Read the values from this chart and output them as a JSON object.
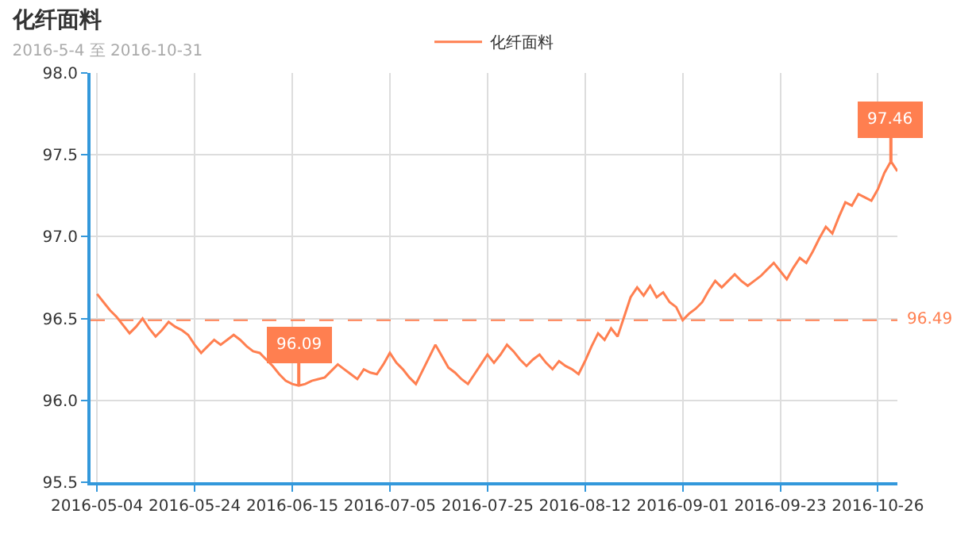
{
  "chart_data": {
    "type": "line",
    "title": "化纤面料",
    "subtitle": "2016-5-4 至 2016-10-31",
    "categories": [
      "2016-05-04",
      null,
      null,
      null,
      null,
      null,
      null,
      null,
      null,
      null,
      null,
      null,
      null,
      null,
      null,
      "2016-05-24",
      null,
      null,
      null,
      null,
      null,
      null,
      null,
      null,
      null,
      null,
      null,
      null,
      null,
      null,
      "2016-06-15",
      null,
      null,
      null,
      null,
      null,
      null,
      null,
      null,
      null,
      null,
      null,
      null,
      null,
      null,
      "2016-07-05",
      null,
      null,
      null,
      null,
      null,
      null,
      null,
      null,
      null,
      null,
      null,
      null,
      null,
      null,
      "2016-07-25",
      null,
      null,
      null,
      null,
      null,
      null,
      null,
      null,
      null,
      null,
      null,
      null,
      null,
      null,
      "2016-08-12",
      null,
      null,
      null,
      null,
      null,
      null,
      null,
      null,
      null,
      null,
      null,
      null,
      null,
      null,
      "2016-09-01",
      null,
      null,
      null,
      null,
      null,
      null,
      null,
      null,
      null,
      null,
      null,
      null,
      null,
      null,
      "2016-09-23",
      null,
      null,
      null,
      null,
      null,
      null,
      null,
      null,
      null,
      null,
      null,
      null,
      null,
      null,
      "2016-10-26",
      null,
      null,
      null
    ],
    "series": [
      {
        "name": "化纤面料",
        "color": "#ff7f50",
        "values": [
          96.65,
          96.6,
          96.55,
          96.51,
          96.46,
          96.41,
          96.45,
          96.5,
          96.44,
          96.39,
          96.43,
          96.48,
          96.45,
          96.43,
          96.4,
          96.34,
          96.29,
          96.33,
          96.37,
          96.34,
          96.37,
          96.4,
          96.37,
          96.33,
          96.3,
          96.29,
          96.25,
          96.21,
          96.16,
          96.12,
          96.1,
          96.09,
          96.1,
          96.12,
          96.13,
          96.14,
          96.18,
          96.22,
          96.19,
          96.16,
          96.13,
          96.19,
          96.17,
          96.16,
          96.22,
          96.29,
          96.23,
          96.19,
          96.14,
          96.1,
          96.18,
          96.26,
          96.34,
          96.27,
          96.2,
          96.17,
          96.13,
          96.1,
          96.16,
          96.22,
          96.28,
          96.23,
          96.28,
          96.34,
          96.3,
          96.25,
          96.21,
          96.25,
          96.28,
          96.23,
          96.19,
          96.24,
          96.21,
          96.19,
          96.16,
          96.24,
          96.33,
          96.41,
          96.37,
          96.44,
          96.39,
          96.51,
          96.63,
          96.69,
          96.64,
          96.7,
          96.63,
          96.66,
          96.6,
          96.57,
          96.49,
          96.53,
          96.56,
          96.6,
          96.67,
          96.73,
          96.69,
          96.73,
          96.77,
          96.73,
          96.7,
          96.73,
          96.76,
          96.8,
          96.84,
          96.79,
          96.74,
          96.81,
          96.87,
          96.84,
          96.91,
          96.99,
          97.06,
          97.02,
          97.12,
          97.21,
          97.19,
          97.26,
          97.24,
          97.22,
          97.29,
          97.39,
          97.46,
          97.4
        ]
      }
    ],
    "ylim": [
      95.5,
      98.0
    ],
    "yticks": [
      95.5,
      {
        "value": 96.0,
        "label": "96.0"
      },
      96.5,
      {
        "value": 97.0,
        "label": "97.0"
      },
      97.5,
      {
        "value": 98.0,
        "label": "98.0"
      }
    ],
    "annotations": [
      {
        "text": "97.46",
        "y": 97.46
      },
      {
        "text": "96.09",
        "y": 96.09
      }
    ],
    "ref_lines": [
      {
        "axis": "y",
        "value": 96.49,
        "label": "96.49",
        "color": "#ff7f50",
        "line_style": "dashed"
      }
    ],
    "grid": true,
    "legend": "top",
    "marker": "none",
    "line_style": "solid"
  }
}
